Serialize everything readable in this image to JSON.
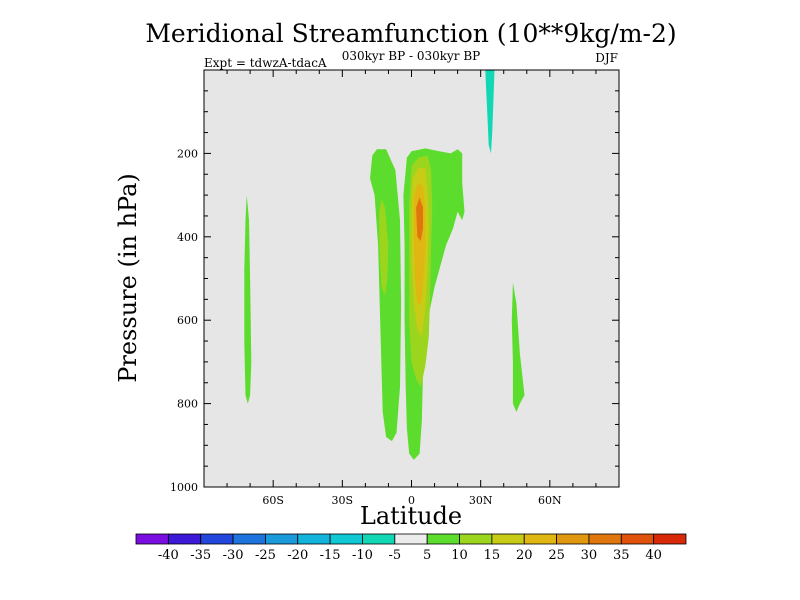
{
  "chart_data": {
    "type": "filled-contour",
    "title": "Meridional Streamfunction (10**9kg/m-2)",
    "subtitle": "030kyr BP - 030kyr BP",
    "left_note": "Expt = tdwzA-tdacA",
    "right_note": "DJF",
    "xlabel": "Latitude",
    "ylabel": "Pressure (in hPa)",
    "xlim": [
      -90,
      90
    ],
    "ylim": [
      1000,
      0
    ],
    "x_ticks": [
      {
        "value": -60,
        "label": "60S"
      },
      {
        "value": -30,
        "label": "30S"
      },
      {
        "value": 0,
        "label": "0"
      },
      {
        "value": 30,
        "label": "30N"
      },
      {
        "value": 60,
        "label": "60N"
      }
    ],
    "y_ticks": [
      {
        "value": 200,
        "label": "200"
      },
      {
        "value": 400,
        "label": "400"
      },
      {
        "value": 600,
        "label": "600"
      },
      {
        "value": 800,
        "label": "800"
      },
      {
        "value": 1000,
        "label": "1000"
      }
    ],
    "background_color": "#e6e6e6",
    "levels": [
      -40,
      -35,
      -30,
      -25,
      -20,
      -15,
      -10,
      -5,
      5,
      10,
      15,
      20,
      25,
      30,
      35,
      40
    ],
    "colorbar_colors": [
      "#7a0de0",
      "#3b19d6",
      "#2346dc",
      "#1f73dc",
      "#1a99db",
      "#12b4db",
      "#0ec9d4",
      "#11d7b4",
      "#ececec",
      "#5cdc2c",
      "#9cd51e",
      "#c8cc16",
      "#e0b612",
      "#e09810",
      "#e0760e",
      "#e0510c",
      "#d82a08"
    ],
    "colorbar_labels": [
      "-40",
      "-35",
      "-30",
      "-25",
      "-20",
      "-15",
      "-10",
      "-5",
      "5",
      "10",
      "15",
      "20",
      "25",
      "30",
      "35",
      "40"
    ],
    "regions": [
      {
        "name": "sh-highlat-cell",
        "value": 7,
        "points": [
          [
            -71.5,
            300
          ],
          [
            -70.5,
            360
          ],
          [
            -70,
            500
          ],
          [
            -69.5,
            700
          ],
          [
            -70,
            780
          ],
          [
            -71,
            800
          ],
          [
            -72,
            780
          ],
          [
            -72.5,
            650
          ],
          [
            -72.5,
            480
          ],
          [
            -72,
            360
          ]
        ]
      },
      {
        "name": "tropical-southern-cell",
        "value": 7,
        "points": [
          [
            -17,
            205
          ],
          [
            -15,
            190
          ],
          [
            -11,
            190
          ],
          [
            -7,
            240
          ],
          [
            -5,
            360
          ],
          [
            -4.5,
            560
          ],
          [
            -5,
            760
          ],
          [
            -6.5,
            870
          ],
          [
            -8.5,
            890
          ],
          [
            -11,
            880
          ],
          [
            -12.5,
            820
          ],
          [
            -13.5,
            620
          ],
          [
            -14.5,
            420
          ],
          [
            -16,
            300
          ],
          [
            -18,
            260
          ]
        ]
      },
      {
        "name": "tropical-southern-core",
        "value": 12,
        "points": [
          [
            -13,
            310
          ],
          [
            -11.5,
            330
          ],
          [
            -10,
            420
          ],
          [
            -10.5,
            500
          ],
          [
            -11.5,
            540
          ],
          [
            -13,
            520
          ],
          [
            -14,
            420
          ],
          [
            -14,
            340
          ]
        ]
      },
      {
        "name": "equatorial-cell-outer",
        "value": 7,
        "points": [
          [
            -2,
            210
          ],
          [
            0,
            195
          ],
          [
            6,
            188
          ],
          [
            12,
            195
          ],
          [
            17,
            200
          ],
          [
            20,
            190
          ],
          [
            22,
            200
          ],
          [
            22,
            270
          ],
          [
            23,
            340
          ],
          [
            22,
            360
          ],
          [
            20,
            340
          ],
          [
            18,
            380
          ],
          [
            15,
            420
          ],
          [
            10,
            520
          ],
          [
            7,
            600
          ],
          [
            5,
            720
          ],
          [
            4.5,
            840
          ],
          [
            3.5,
            920
          ],
          [
            1,
            935
          ],
          [
            -1,
            920
          ],
          [
            -2,
            860
          ],
          [
            -2.5,
            760
          ],
          [
            -3,
            600
          ],
          [
            -3,
            420
          ],
          [
            -3.5,
            300
          ]
        ]
      },
      {
        "name": "equatorial-cell-ring",
        "value": 12,
        "points": [
          [
            0,
            230
          ],
          [
            3,
            210
          ],
          [
            7,
            205
          ],
          [
            8.5,
            240
          ],
          [
            9,
            330
          ],
          [
            8.5,
            430
          ],
          [
            8,
            560
          ],
          [
            7.5,
            640
          ],
          [
            6,
            710
          ],
          [
            4,
            760
          ],
          [
            2,
            740
          ],
          [
            0,
            700
          ],
          [
            -1,
            600
          ],
          [
            -1,
            450
          ],
          [
            -1,
            320
          ]
        ]
      },
      {
        "name": "equatorial-cell-mid",
        "value": 17,
        "points": [
          [
            0.5,
            260
          ],
          [
            3,
            235
          ],
          [
            6,
            235
          ],
          [
            7,
            290
          ],
          [
            7.5,
            380
          ],
          [
            7,
            480
          ],
          [
            6,
            570
          ],
          [
            4.5,
            640
          ],
          [
            2.5,
            620
          ],
          [
            1,
            560
          ],
          [
            0,
            460
          ],
          [
            0,
            340
          ]
        ]
      },
      {
        "name": "equatorial-cell-inner",
        "value": 22,
        "points": [
          [
            1,
            300
          ],
          [
            3,
            270
          ],
          [
            5,
            280
          ],
          [
            6,
            330
          ],
          [
            6,
            430
          ],
          [
            5,
            520
          ],
          [
            4,
            560
          ],
          [
            2.5,
            560
          ],
          [
            1.5,
            500
          ],
          [
            1,
            400
          ]
        ]
      },
      {
        "name": "equatorial-cell-core",
        "value": 32,
        "points": [
          [
            2,
            330
          ],
          [
            3.5,
            305
          ],
          [
            5,
            330
          ],
          [
            5,
            380
          ],
          [
            4,
            410
          ],
          [
            2.5,
            400
          ]
        ]
      },
      {
        "name": "nh-subtropical-upper-cell",
        "value": -7,
        "points": [
          [
            32,
            0
          ],
          [
            36,
            0
          ],
          [
            35.5,
            80
          ],
          [
            35,
            150
          ],
          [
            34.5,
            200
          ],
          [
            33.5,
            180
          ],
          [
            33,
            120
          ],
          [
            32.5,
            60
          ]
        ]
      },
      {
        "name": "nh-midlat-cell",
        "value": 7,
        "points": [
          [
            44,
            510
          ],
          [
            45.5,
            560
          ],
          [
            47,
            680
          ],
          [
            49,
            780
          ],
          [
            47,
            800
          ],
          [
            45.5,
            820
          ],
          [
            44,
            800
          ],
          [
            44,
            700
          ],
          [
            43.5,
            600
          ]
        ]
      }
    ]
  }
}
